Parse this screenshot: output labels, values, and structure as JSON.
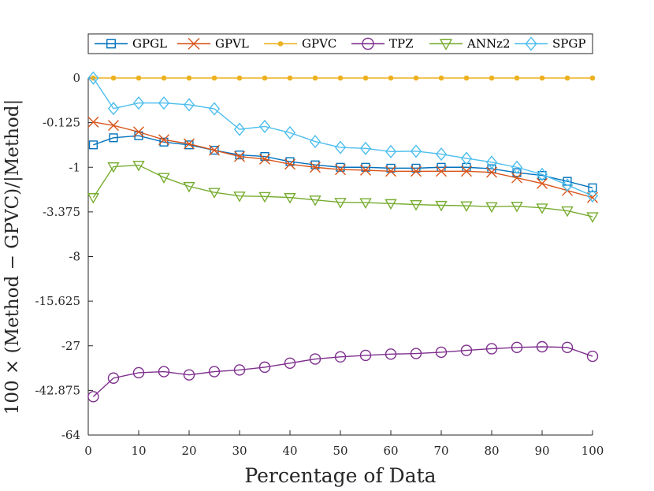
{
  "chart_data": {
    "type": "line",
    "title": "",
    "xlabel": "Percentage of Data",
    "ylabel": "100 × (Method − GPVC)/|Method|",
    "x": [
      1,
      5,
      10,
      15,
      20,
      25,
      30,
      35,
      40,
      45,
      50,
      55,
      60,
      65,
      70,
      75,
      80,
      85,
      90,
      95,
      100
    ],
    "xlim": [
      0,
      100
    ],
    "xticks": [
      0,
      10,
      20,
      30,
      40,
      50,
      60,
      70,
      80,
      90,
      100
    ],
    "yscale": "cube-root",
    "ylim": [
      -64,
      0
    ],
    "yticks": [
      0,
      -0.125,
      -1,
      -3.375,
      -8,
      -15.625,
      -27,
      -42.875,
      -64
    ],
    "ytick_labels": [
      "0",
      "-0.125",
      "-1",
      "-3.375",
      "-8",
      "-15.625",
      "-27",
      "-42.875",
      "-64"
    ],
    "grid": false,
    "legend_position": "top",
    "series": [
      {
        "name": "GPGL",
        "color": "#0072BD",
        "marker": "square",
        "values": [
          -0.42,
          -0.3,
          -0.27,
          -0.37,
          -0.42,
          -0.53,
          -0.64,
          -0.68,
          -0.82,
          -0.92,
          -1.0,
          -1.0,
          -1.03,
          -1.03,
          -1.0,
          -1.0,
          -1.05,
          -1.19,
          -1.3,
          -1.55,
          -1.86
        ]
      },
      {
        "name": "GPVL",
        "color": "#D95319",
        "marker": "x",
        "values": [
          -0.12,
          -0.15,
          -0.22,
          -0.33,
          -0.4,
          -0.53,
          -0.68,
          -0.75,
          -0.9,
          -1.0,
          -1.08,
          -1.1,
          -1.14,
          -1.14,
          -1.14,
          -1.14,
          -1.18,
          -1.4,
          -1.65,
          -2.0,
          -2.4
        ]
      },
      {
        "name": "GPVC",
        "color": "#EDB120",
        "marker": "dot",
        "values": [
          0,
          0,
          0,
          0,
          0,
          0,
          0,
          0,
          0,
          0,
          0,
          0,
          0,
          0,
          0,
          0,
          0,
          0,
          0,
          0,
          0
        ]
      },
      {
        "name": "TPZ",
        "color": "#7E2F8E",
        "marker": "circle",
        "values": [
          -45.5,
          -38.0,
          -36.0,
          -35.6,
          -36.8,
          -35.6,
          -35.0,
          -34.0,
          -32.6,
          -31.2,
          -30.5,
          -30.0,
          -29.6,
          -29.4,
          -29.0,
          -28.4,
          -27.9,
          -27.5,
          -27.3,
          -27.5,
          -30.3
        ]
      },
      {
        "name": "ANNz2",
        "color": "#77AC30",
        "marker": "triangle-down",
        "values": [
          -2.4,
          -0.98,
          -0.93,
          -1.38,
          -1.79,
          -2.1,
          -2.31,
          -2.34,
          -2.4,
          -2.55,
          -2.7,
          -2.72,
          -2.78,
          -2.85,
          -2.9,
          -2.93,
          -2.99,
          -2.96,
          -3.08,
          -3.29,
          -3.75
        ]
      },
      {
        "name": "SPGP",
        "color": "#4DBEEE",
        "marker": "diamond",
        "values": [
          0,
          -0.04,
          -0.022,
          -0.022,
          -0.027,
          -0.041,
          -0.19,
          -0.16,
          -0.23,
          -0.36,
          -0.47,
          -0.49,
          -0.56,
          -0.55,
          -0.62,
          -0.73,
          -0.84,
          -1.0,
          -1.26,
          -1.72,
          -2.3
        ]
      }
    ]
  }
}
